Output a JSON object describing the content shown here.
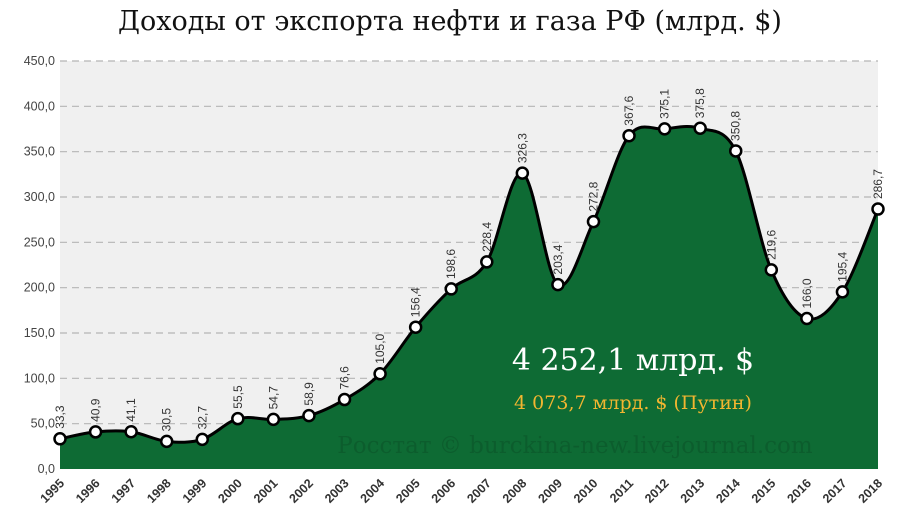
{
  "chart_data": {
    "type": "area",
    "title": "Доходы от экспорта нефти и газа РФ (млрд. $)",
    "x": [
      "1995",
      "1996",
      "1997",
      "1998",
      "1999",
      "2000",
      "2001",
      "2002",
      "2003",
      "2004",
      "2005",
      "2006",
      "2007",
      "2008",
      "2009",
      "2010",
      "2011",
      "2012",
      "2013",
      "2014",
      "2015",
      "2016",
      "2017",
      "2018"
    ],
    "values": [
      33.3,
      40.9,
      41.1,
      30.5,
      32.7,
      55.5,
      54.7,
      58.9,
      76.6,
      105.0,
      156.4,
      198.6,
      228.4,
      326.3,
      203.4,
      272.8,
      367.6,
      375.1,
      375.8,
      350.8,
      219.6,
      166.0,
      195.4,
      286.7
    ],
    "data_labels": [
      "33,3",
      "40,9",
      "41,1",
      "30,5",
      "32,7",
      "55,5",
      "54,7",
      "58,9",
      "76,6",
      "105,0",
      "156,4",
      "198,6",
      "228,4",
      "326,3",
      "203,4",
      "272,8",
      "367,6",
      "375,1",
      "375,8",
      "350,8",
      "219,6",
      "166,0",
      "195,4",
      "286,7"
    ],
    "yticks": [
      "0,0",
      "50,0",
      "100,0",
      "150,0",
      "200,0",
      "250,0",
      "300,0",
      "350,0",
      "400,0",
      "450,0"
    ],
    "ylim": [
      0,
      450
    ],
    "grid": true,
    "colors": {
      "fill": "#0e6b34",
      "line": "#000000",
      "marker": "#ffffff",
      "plot_bg": "#f0f0f0"
    },
    "annotations": {
      "total": "4 252,1 млрд. $",
      "putin": "4 073,7 млрд. $ (Путин)",
      "watermark": "Росстат © burckina-new.livejournal.com"
    }
  }
}
